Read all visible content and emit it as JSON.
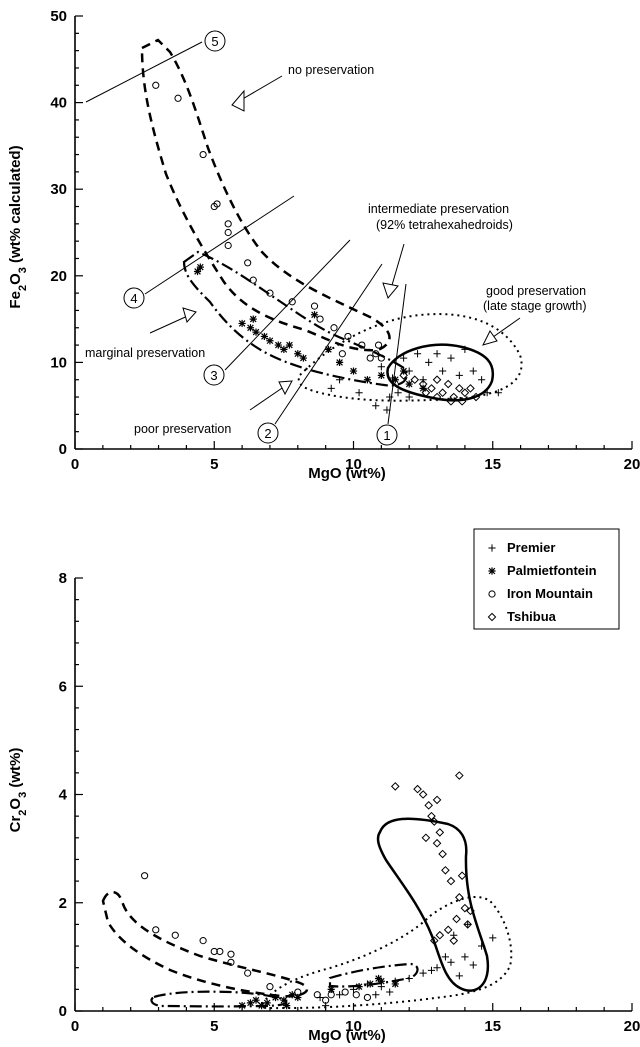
{
  "chart_data": [
    {
      "type": "scatter",
      "panel": "top",
      "xlabel": "MgO (wt%)",
      "ylabel_parts": [
        "Fe",
        "2",
        "O",
        "3",
        " (wt% calculated)"
      ],
      "xlim": [
        0,
        20
      ],
      "ylim": [
        0,
        50
      ],
      "x_ticks": [
        0,
        5,
        10,
        15,
        20
      ],
      "y_ticks": [
        0,
        10,
        20,
        30,
        40,
        50
      ],
      "series": [
        {
          "name": "Premier",
          "marker": "plus",
          "points": [
            [
              11.0,
              9.5
            ],
            [
              11.4,
              8.2
            ],
            [
              11.8,
              10.5
            ],
            [
              12.0,
              9.0
            ],
            [
              12.3,
              11.0
            ],
            [
              12.5,
              8.0
            ],
            [
              12.7,
              10.0
            ],
            [
              13.0,
              11.0
            ],
            [
              13.2,
              9.0
            ],
            [
              13.5,
              10.5
            ],
            [
              13.8,
              8.5
            ],
            [
              14.0,
              11.5
            ],
            [
              14.3,
              9.0
            ],
            [
              14.6,
              8.0
            ],
            [
              14.8,
              6.5
            ],
            [
              15.2,
              6.5
            ],
            [
              11.3,
              6.0
            ],
            [
              11.6,
              6.5
            ],
            [
              12.0,
              6.0
            ],
            [
              11.2,
              4.5
            ],
            [
              10.8,
              5.0
            ],
            [
              10.2,
              6.5
            ],
            [
              9.5,
              8.0
            ],
            [
              9.2,
              7.0
            ]
          ]
        },
        {
          "name": "Palmietfontein",
          "marker": "asterisk",
          "points": [
            [
              4.5,
              21.0
            ],
            [
              4.4,
              20.5
            ],
            [
              6.0,
              14.5
            ],
            [
              6.3,
              14.0
            ],
            [
              6.5,
              13.5
            ],
            [
              6.8,
              13.0
            ],
            [
              6.4,
              15.0
            ],
            [
              7.0,
              12.5
            ],
            [
              7.3,
              12.0
            ],
            [
              7.5,
              11.5
            ],
            [
              7.7,
              12.0
            ],
            [
              8.0,
              11.0
            ],
            [
              8.2,
              10.5
            ],
            [
              8.6,
              15.5
            ],
            [
              9.1,
              11.5
            ],
            [
              9.5,
              10.0
            ],
            [
              10.0,
              9.0
            ],
            [
              10.5,
              8.0
            ],
            [
              11.0,
              8.5
            ],
            [
              11.5,
              8.0
            ],
            [
              12.0,
              7.5
            ],
            [
              12.5,
              7.0
            ],
            [
              11.8,
              9.0
            ]
          ]
        },
        {
          "name": "Iron Mountain",
          "marker": "circle",
          "points": [
            [
              2.9,
              42.0
            ],
            [
              3.7,
              40.5
            ],
            [
              4.6,
              34.0
            ],
            [
              5.0,
              28.0
            ],
            [
              5.1,
              28.3
            ],
            [
              5.5,
              26.0
            ],
            [
              5.5,
              25.0
            ],
            [
              5.5,
              23.5
            ],
            [
              6.2,
              21.5
            ],
            [
              6.4,
              19.5
            ],
            [
              7.0,
              18.0
            ],
            [
              7.8,
              17.0
            ],
            [
              8.6,
              16.5
            ],
            [
              8.8,
              15.0
            ],
            [
              9.3,
              14.0
            ],
            [
              9.8,
              13.0
            ],
            [
              10.3,
              12.0
            ],
            [
              10.8,
              11.0
            ],
            [
              11.0,
              10.5
            ],
            [
              10.6,
              10.5
            ],
            [
              10.9,
              12.0
            ],
            [
              9.6,
              11.0
            ]
          ]
        },
        {
          "name": "Tshibua",
          "marker": "diamond",
          "points": [
            [
              11.8,
              8.5
            ],
            [
              12.2,
              8.0
            ],
            [
              12.5,
              7.5
            ],
            [
              12.8,
              7.0
            ],
            [
              13.0,
              8.0
            ],
            [
              13.2,
              6.5
            ],
            [
              13.4,
              7.5
            ],
            [
              13.6,
              6.0
            ],
            [
              13.8,
              7.0
            ],
            [
              14.0,
              6.5
            ],
            [
              14.2,
              7.0
            ],
            [
              13.5,
              5.5
            ],
            [
              13.0,
              6.0
            ],
            [
              12.6,
              6.5
            ],
            [
              14.4,
              6.0
            ],
            [
              13.9,
              5.5
            ]
          ]
        }
      ],
      "region_labels": [
        "no preservation",
        "intermediate preservation",
        "(92% tetrahexahedroids)",
        "good preservation",
        "(late stage growth)",
        "marginal preservation",
        "poor preservation"
      ],
      "line_numbers": [
        "1",
        "2",
        "3",
        "4",
        "5"
      ]
    },
    {
      "type": "scatter",
      "panel": "bottom",
      "xlabel": "MgO (wt%)",
      "ylabel_parts": [
        "Cr",
        "2",
        "O",
        "3",
        " (wt%)"
      ],
      "xlim": [
        0,
        20
      ],
      "ylim": [
        0,
        8
      ],
      "x_ticks": [
        0,
        5,
        10,
        15,
        20
      ],
      "y_ticks": [
        0,
        2,
        4,
        6,
        8
      ],
      "legend_position": "top-right",
      "series": [
        {
          "name": "Premier",
          "marker": "plus",
          "points": [
            [
              9.5,
              0.3
            ],
            [
              10.0,
              0.4
            ],
            [
              10.5,
              0.5
            ],
            [
              11.0,
              0.45
            ],
            [
              11.5,
              0.55
            ],
            [
              12.0,
              0.6
            ],
            [
              12.5,
              0.7
            ],
            [
              13.0,
              0.8
            ],
            [
              13.5,
              0.9
            ],
            [
              14.0,
              1.0
            ],
            [
              14.3,
              0.85
            ],
            [
              14.6,
              1.2
            ],
            [
              15.0,
              1.35
            ],
            [
              13.8,
              0.65
            ],
            [
              12.8,
              0.75
            ],
            [
              13.3,
              1.0
            ],
            [
              14.1,
              1.6
            ],
            [
              13.6,
              1.4
            ],
            [
              10.8,
              0.3
            ],
            [
              11.3,
              0.35
            ],
            [
              9.0,
              0.1
            ],
            [
              8.8,
              0.25
            ]
          ]
        },
        {
          "name": "Palmietfontein",
          "marker": "asterisk",
          "points": [
            [
              6.0,
              0.1
            ],
            [
              6.3,
              0.15
            ],
            [
              6.5,
              0.2
            ],
            [
              6.7,
              0.1
            ],
            [
              6.9,
              0.15
            ],
            [
              7.2,
              0.25
            ],
            [
              7.5,
              0.2
            ],
            [
              7.8,
              0.3
            ],
            [
              8.0,
              0.25
            ],
            [
              7.6,
              0.1
            ],
            [
              9.2,
              0.4
            ],
            [
              10.2,
              0.45
            ],
            [
              10.6,
              0.5
            ],
            [
              11.0,
              0.55
            ],
            [
              11.5,
              0.5
            ],
            [
              10.9,
              0.6
            ]
          ]
        },
        {
          "name": "Iron Mountain",
          "marker": "circle",
          "points": [
            [
              2.5,
              2.5
            ],
            [
              2.9,
              1.5
            ],
            [
              3.6,
              1.4
            ],
            [
              4.6,
              1.3
            ],
            [
              5.0,
              1.1
            ],
            [
              5.2,
              1.1
            ],
            [
              5.6,
              1.05
            ],
            [
              5.6,
              0.9
            ],
            [
              6.2,
              0.7
            ],
            [
              7.0,
              0.45
            ],
            [
              8.0,
              0.35
            ],
            [
              8.7,
              0.3
            ],
            [
              9.2,
              0.3
            ],
            [
              9.7,
              0.35
            ],
            [
              10.1,
              0.3
            ],
            [
              10.5,
              0.25
            ],
            [
              9.0,
              0.2
            ]
          ]
        },
        {
          "name": "Tshibua",
          "marker": "diamond",
          "points": [
            [
              11.5,
              4.15
            ],
            [
              12.3,
              4.1
            ],
            [
              12.5,
              4.0
            ],
            [
              12.7,
              3.8
            ],
            [
              12.8,
              3.6
            ],
            [
              13.0,
              3.9
            ],
            [
              12.9,
              3.5
            ],
            [
              13.1,
              3.3
            ],
            [
              13.0,
              3.1
            ],
            [
              12.6,
              3.2
            ],
            [
              13.2,
              2.9
            ],
            [
              13.3,
              2.6
            ],
            [
              13.5,
              2.4
            ],
            [
              13.8,
              2.1
            ],
            [
              14.0,
              1.9
            ],
            [
              13.7,
              1.7
            ],
            [
              13.4,
              1.5
            ],
            [
              13.1,
              1.4
            ],
            [
              12.9,
              1.3
            ],
            [
              13.6,
              1.3
            ],
            [
              14.1,
              1.6
            ],
            [
              13.8,
              4.35
            ],
            [
              13.9,
              2.5
            ],
            [
              14.2,
              1.85
            ]
          ]
        }
      ]
    }
  ],
  "colors": {
    "ink": "#000000",
    "background": "#ffffff"
  }
}
